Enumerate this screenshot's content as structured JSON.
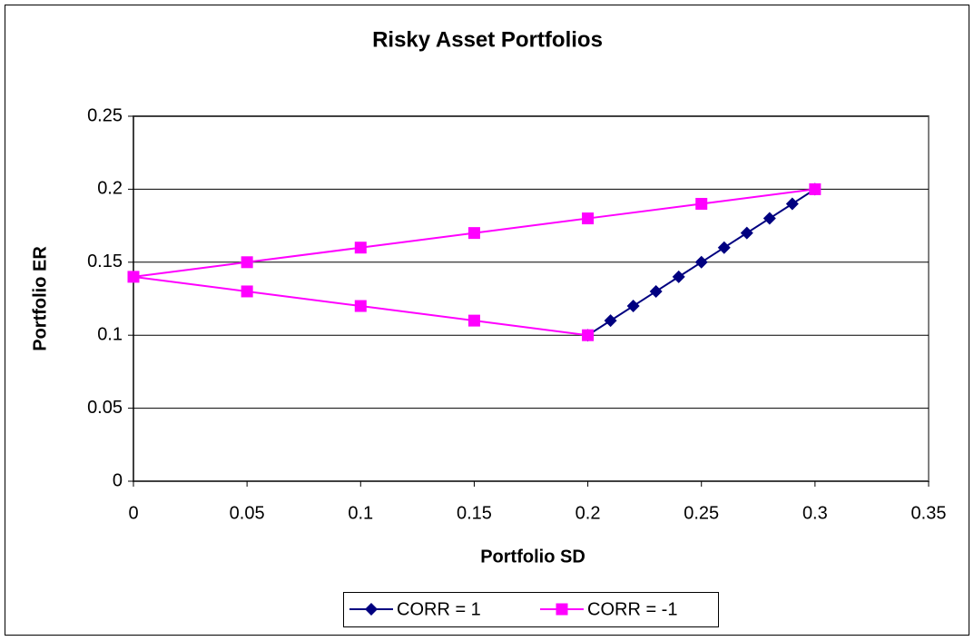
{
  "chart_data": {
    "type": "scatter",
    "title": "Risky Asset Portfolios",
    "x_label": "Portfolio SD",
    "y_label": "Portfolio ER",
    "series": [
      {
        "name": "CORR = 1",
        "color": "#000080",
        "marker": "diamond",
        "x": [
          0.2,
          0.21,
          0.22,
          0.23,
          0.24,
          0.25,
          0.26,
          0.27,
          0.28,
          0.29,
          0.3
        ],
        "values": [
          0.1,
          0.11,
          0.12,
          0.13,
          0.14,
          0.15,
          0.16,
          0.17,
          0.18,
          0.19,
          0.2
        ]
      },
      {
        "name": "CORR = -1",
        "color": "#ff00ff",
        "marker": "square",
        "x": [
          0.2,
          0.15,
          0.1,
          0.05,
          0,
          0.05,
          0.1,
          0.15,
          0.2,
          0.25,
          0.3
        ],
        "values": [
          0.1,
          0.11,
          0.12,
          0.13,
          0.14,
          0.15,
          0.16,
          0.17,
          0.18,
          0.19,
          0.2
        ]
      }
    ],
    "xlim": [
      0,
      0.35
    ],
    "xticks": [
      0,
      0.05,
      0.1,
      0.15,
      0.2,
      0.25,
      0.3,
      0.35
    ],
    "ylim": [
      0,
      0.25
    ],
    "yticks": [
      0,
      0.05,
      0.1,
      0.15,
      0.2,
      0.25
    ],
    "grid": true,
    "legend": "bottom"
  }
}
